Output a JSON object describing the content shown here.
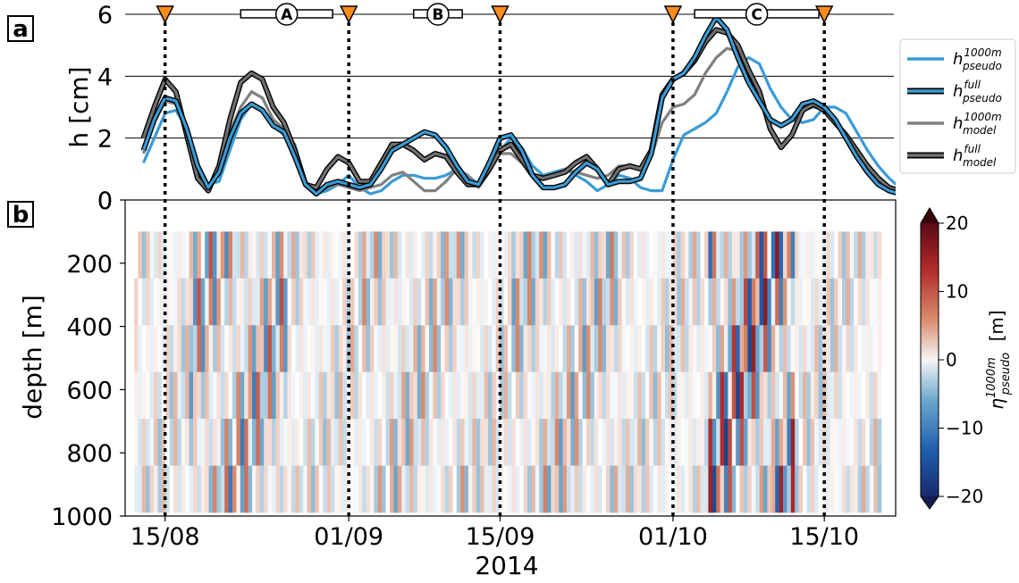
{
  "chart_data": [
    {
      "panel": "a",
      "type": "line",
      "ylabel": "h [cm]",
      "ylim": [
        0,
        6
      ],
      "yticks": [
        "0",
        "2",
        "4",
        "6"
      ],
      "grid": "horizontal",
      "legend_placement": "right",
      "x_units": "days since 2014-08-13",
      "series": [
        {
          "name": "pseudo 1000m",
          "label_main": "h",
          "label_sup": "1000m",
          "label_sub": "pseudo",
          "color": "#3a9bd5",
          "style": "thin",
          "x": [
            0,
            1,
            2,
            3,
            4,
            5,
            6,
            7,
            8,
            9,
            10,
            11,
            12,
            13,
            14,
            15,
            16,
            17,
            18,
            19,
            20,
            21,
            22,
            23,
            24,
            25,
            26,
            27,
            28,
            29,
            30,
            31,
            32,
            33,
            34,
            35,
            36,
            37,
            38,
            39,
            40,
            41,
            42,
            43,
            44,
            45,
            46,
            47,
            48,
            49,
            50,
            51,
            52,
            53,
            54,
            55,
            56,
            57,
            58,
            59,
            60,
            61,
            62,
            63,
            64,
            65,
            66,
            67,
            68,
            69,
            70,
            71,
            72
          ],
          "y": [
            1.2,
            2.0,
            2.8,
            2.9,
            2.3,
            1.2,
            0.5,
            0.6,
            1.6,
            2.6,
            3.1,
            2.9,
            2.4,
            2.1,
            1.8,
            0.6,
            0.2,
            0.3,
            0.5,
            0.8,
            0.4,
            0.2,
            0.3,
            0.6,
            0.8,
            0.8,
            0.7,
            0.7,
            0.8,
            1.0,
            0.8,
            0.5,
            0.9,
            1.6,
            2.0,
            1.7,
            1.1,
            0.8,
            0.9,
            1.0,
            0.8,
            0.6,
            0.3,
            0.5,
            0.8,
            0.7,
            0.4,
            0.3,
            0.3,
            1.3,
            2.1,
            2.3,
            2.5,
            2.8,
            3.5,
            4.3,
            4.6,
            4.4,
            3.6,
            3.0,
            2.6,
            2.5,
            2.6,
            3.0,
            3.0,
            2.8,
            2.2,
            1.6,
            1.1,
            0.7,
            0.4,
            0.3,
            0.5
          ]
        },
        {
          "name": "pseudo full",
          "label_main": "h",
          "label_sup": "full",
          "label_sub": "pseudo",
          "color": "#3a9bd5",
          "style": "thick",
          "x": [
            0,
            1,
            2,
            3,
            4,
            5,
            6,
            7,
            8,
            9,
            10,
            11,
            12,
            13,
            14,
            15,
            16,
            17,
            18,
            19,
            20,
            21,
            22,
            23,
            24,
            25,
            26,
            27,
            28,
            29,
            30,
            31,
            32,
            33,
            34,
            35,
            36,
            37,
            38,
            39,
            40,
            41,
            42,
            43,
            44,
            45,
            46,
            47,
            48,
            49,
            50,
            51,
            52,
            53,
            54,
            55,
            56,
            57,
            58,
            59,
            60,
            61,
            62,
            63,
            64,
            65,
            66,
            67,
            68,
            69,
            70,
            71,
            72
          ],
          "y": [
            1.6,
            2.6,
            3.3,
            3.2,
            2.3,
            1.1,
            0.4,
            0.9,
            2.0,
            2.8,
            3.1,
            2.9,
            2.4,
            2.2,
            1.4,
            0.5,
            0.2,
            0.5,
            0.6,
            0.5,
            0.4,
            0.5,
            1.0,
            1.6,
            1.8,
            2.0,
            2.2,
            2.1,
            1.7,
            1.1,
            0.6,
            0.5,
            1.2,
            2.0,
            2.1,
            1.6,
            0.8,
            0.4,
            0.4,
            0.5,
            0.9,
            1.2,
            1.0,
            0.5,
            0.6,
            0.6,
            0.7,
            1.5,
            3.3,
            3.9,
            4.1,
            4.6,
            5.3,
            5.9,
            5.5,
            4.6,
            3.8,
            3.2,
            2.6,
            2.4,
            2.6,
            3.1,
            3.2,
            3.0,
            2.6,
            2.0,
            1.4,
            0.9,
            0.5,
            0.3,
            0.2,
            0.2,
            0.3
          ]
        },
        {
          "name": "model 1000m",
          "label_main": "h",
          "label_sup": "1000m",
          "label_sub": "model",
          "color": "#808080",
          "style": "thin",
          "x": [
            0,
            1,
            2,
            3,
            4,
            5,
            6,
            7,
            8,
            9,
            10,
            11,
            12,
            13,
            14,
            15,
            16,
            17,
            18,
            19,
            20,
            21,
            22,
            23,
            24,
            25,
            26,
            27,
            28,
            29,
            30,
            31,
            32,
            33,
            34,
            35,
            36,
            37,
            38,
            39,
            40,
            41,
            42,
            43,
            44,
            45,
            46,
            47,
            48,
            49,
            50,
            51,
            52,
            53,
            54,
            55,
            56,
            57,
            58,
            59,
            60,
            61,
            62,
            63,
            64,
            65,
            66,
            67,
            68,
            69,
            70,
            71,
            72
          ],
          "y": [
            1.5,
            2.5,
            3.2,
            3.1,
            2.2,
            1.1,
            0.4,
            1.0,
            2.2,
            3.0,
            3.5,
            3.3,
            2.6,
            2.3,
            1.5,
            0.5,
            0.2,
            0.4,
            0.5,
            0.4,
            0.3,
            0.4,
            0.5,
            0.8,
            0.9,
            0.6,
            0.3,
            0.3,
            0.6,
            1.0,
            0.8,
            0.4,
            0.9,
            1.5,
            1.5,
            1.2,
            0.8,
            0.7,
            0.8,
            1.0,
            0.9,
            0.8,
            0.7,
            0.8,
            1.1,
            1.1,
            1.0,
            1.4,
            2.5,
            3.0,
            3.1,
            3.4,
            4.1,
            4.6,
            4.9,
            4.8,
            4.0,
            3.2,
            2.6,
            2.4,
            2.6,
            2.9,
            3.0,
            2.9,
            2.6,
            2.0,
            1.4,
            0.9,
            0.6,
            0.4,
            0.3,
            0.3,
            0.4
          ]
        },
        {
          "name": "model full",
          "label_main": "h",
          "label_sup": "full",
          "label_sub": "model",
          "color": "#707070",
          "style": "thick",
          "x": [
            0,
            1,
            2,
            3,
            4,
            5,
            6,
            7,
            8,
            9,
            10,
            11,
            12,
            13,
            14,
            15,
            16,
            17,
            18,
            19,
            20,
            21,
            22,
            23,
            24,
            25,
            26,
            27,
            28,
            29,
            30,
            31,
            32,
            33,
            34,
            35,
            36,
            37,
            38,
            39,
            40,
            41,
            42,
            43,
            44,
            45,
            46,
            47,
            48,
            49,
            50,
            51,
            52,
            53,
            54,
            55,
            56,
            57,
            58,
            59,
            60,
            61,
            62,
            63,
            64,
            65,
            66,
            67,
            68,
            69,
            70,
            71,
            72
          ],
          "y": [
            2.0,
            3.0,
            3.9,
            3.5,
            2.1,
            0.7,
            0.3,
            1.1,
            2.6,
            3.8,
            4.1,
            3.9,
            3.0,
            2.5,
            1.6,
            0.5,
            0.4,
            1.0,
            1.4,
            1.2,
            0.6,
            0.6,
            1.2,
            1.8,
            1.8,
            1.6,
            1.3,
            1.5,
            1.4,
            0.9,
            0.5,
            0.5,
            1.0,
            1.6,
            1.8,
            1.3,
            0.8,
            0.7,
            0.8,
            0.9,
            1.2,
            1.4,
            1.0,
            0.5,
            1.0,
            1.1,
            1.0,
            1.6,
            3.4,
            3.9,
            4.1,
            4.5,
            5.1,
            5.5,
            5.4,
            5.0,
            4.2,
            3.5,
            2.3,
            1.7,
            2.1,
            2.9,
            3.1,
            2.9,
            2.5,
            2.1,
            1.6,
            1.1,
            0.7,
            0.4,
            0.3,
            0.5,
            0.6
          ]
        }
      ],
      "events": {
        "triangle_days": [
          2.0,
          19.0,
          33.0,
          49.0,
          63.0
        ],
        "triangle_color": "#ff8c1a",
        "intervals": [
          {
            "label": "A",
            "start_day": 9.0,
            "end_day": 17.5
          },
          {
            "label": "B",
            "start_day": 25.0,
            "end_day": 29.5
          },
          {
            "label": "C",
            "start_day": 51.0,
            "end_day": 62.5
          }
        ]
      }
    },
    {
      "panel": "b",
      "type": "heatmap",
      "xlabel": "2014",
      "ylabel": "depth [m]",
      "ylim": [
        1000,
        0
      ],
      "yticks": [
        "0",
        "200",
        "400",
        "600",
        "800",
        "1000"
      ],
      "xticks": [
        {
          "label": "15/08",
          "day": 2.0
        },
        {
          "label": "01/09",
          "day": 19.0
        },
        {
          "label": "15/09",
          "day": 33.0
        },
        {
          "label": "01/10",
          "day": 49.0
        },
        {
          "label": "15/10",
          "day": 63.0
        }
      ],
      "data_depth_range": [
        100,
        1000
      ],
      "colorbar": {
        "label_main": "η",
        "label_sup": "1000m",
        "label_sub": "pseudo",
        "label_unit": "[m]",
        "range": [
          -20,
          20
        ],
        "ticks": [
          "20",
          "10",
          "0",
          "−10",
          "−20"
        ],
        "colors": [
          "#1a2a6c",
          "#1f5fb0",
          "#6aa6cc",
          "#ffffff",
          "#d98a6a",
          "#b22b2b",
          "#5a0a14"
        ]
      }
    }
  ],
  "panel_labels": {
    "a": "a",
    "b": "b"
  }
}
